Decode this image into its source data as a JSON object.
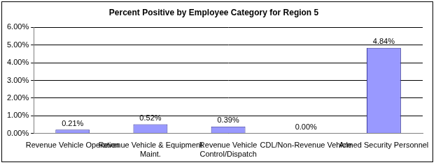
{
  "chart_data": {
    "type": "bar",
    "title": "Percent Positive by Employee Category for Region 5",
    "categories": [
      "Revenue Vehicle Operation",
      "Revenue Vehicle & Equipment Maint.",
      "Revenue Vehicle Control/Dispatch",
      "CDL/Non-Revenue Vehicle",
      "Armed Security Personnel"
    ],
    "values": [
      0.21,
      0.52,
      0.39,
      0.0,
      4.84
    ],
    "value_labels": [
      "0.21%",
      "0.52%",
      "0.39%",
      "0.00%",
      "4.84%"
    ],
    "color": "#9999ff",
    "ylim": [
      0,
      6
    ],
    "yticks": [
      {
        "value": 0,
        "label": "0.00%"
      },
      {
        "value": 1,
        "label": "1.00%"
      },
      {
        "value": 2,
        "label": "2.00%"
      },
      {
        "value": 3,
        "label": "3.00%"
      },
      {
        "value": 4,
        "label": "4.00%"
      },
      {
        "value": 5,
        "label": "5.00%"
      },
      {
        "value": 6,
        "label": "6.00%"
      }
    ],
    "grid": true,
    "data_labels": true
  }
}
